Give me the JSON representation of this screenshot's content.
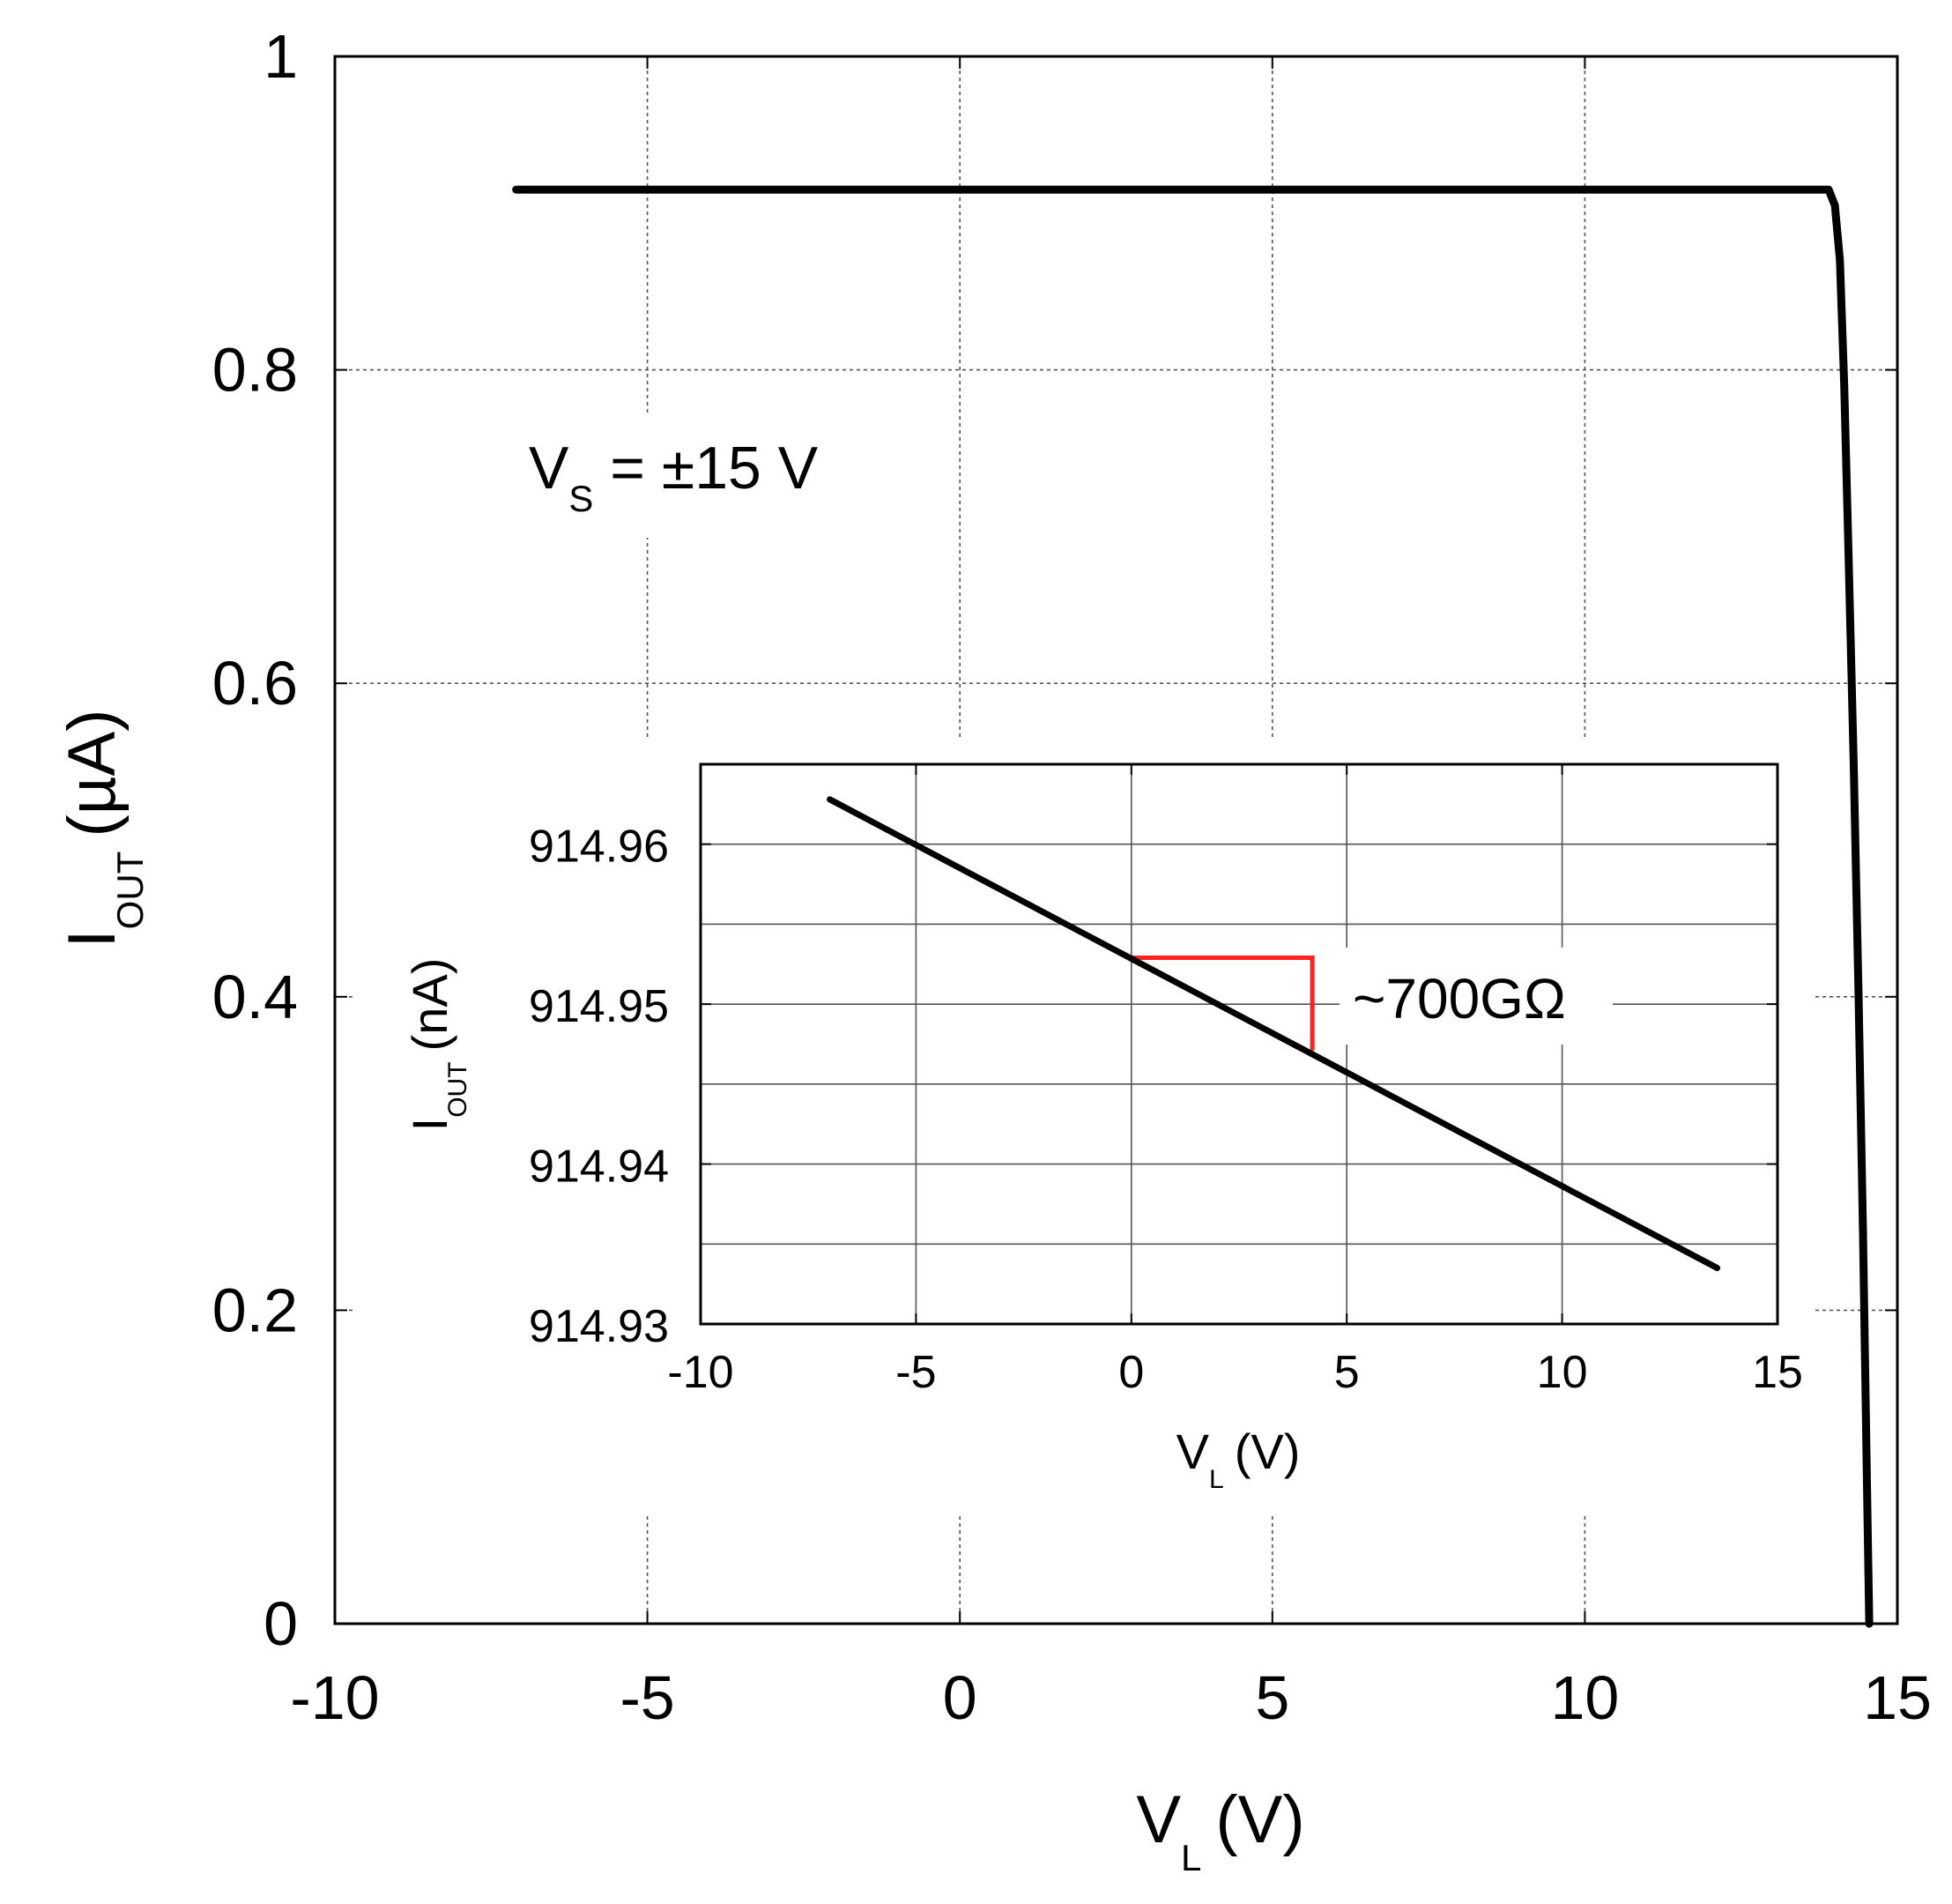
{
  "chart_data": [
    {
      "type": "line",
      "xlabel_main": "V",
      "xlabel_sub": "L",
      "xlabel_unit": "(V)",
      "ylabel_main": "I",
      "ylabel_sub": "OUT",
      "ylabel_unit": "(µA)",
      "xlim": [
        -10,
        15
      ],
      "ylim": [
        0,
        1
      ],
      "x_ticks": [
        "-10",
        "-5",
        "0",
        "5",
        "10",
        "15"
      ],
      "y_ticks": [
        "0",
        "0.2",
        "0.4",
        "0.6",
        "0.8",
        "1"
      ],
      "grid": true,
      "annotation": {
        "main": "V",
        "sub": "S",
        "rest": " = ±15 V"
      },
      "series": [
        {
          "color": "#000000",
          "x": [
            -7.1,
            -3,
            0,
            5,
            10,
            13.3,
            13.9,
            14.0,
            14.08,
            14.15,
            14.22,
            14.3,
            14.38,
            14.45,
            14.51,
            14.55
          ],
          "y": [
            0.915,
            0.915,
            0.915,
            0.915,
            0.915,
            0.915,
            0.915,
            0.905,
            0.87,
            0.79,
            0.68,
            0.55,
            0.4,
            0.25,
            0.1,
            0.0
          ]
        }
      ]
    },
    {
      "type": "line",
      "xlabel_main": "V",
      "xlabel_sub": "L",
      "xlabel_unit": "(V)",
      "ylabel_main": "I",
      "ylabel_sub": "OUT",
      "ylabel_unit": "(nA)",
      "xlim": [
        -10,
        15
      ],
      "ylim": [
        914.93,
        914.965
      ],
      "x_ticks": [
        "-10",
        "-5",
        "0",
        "5",
        "10",
        "15"
      ],
      "y_ticks": [
        "914.93",
        "914.94",
        "914.95",
        "914.96"
      ],
      "grid": true,
      "series": [
        {
          "color": "#000000",
          "x": [
            -7.0,
            13.6
          ],
          "y": [
            914.9628,
            914.9335
          ]
        }
      ],
      "slope_marker": {
        "color": "#ff2020",
        "x": [
          0,
          4.2
        ],
        "y": [
          914.9529,
          914.9471
        ],
        "label": "~700GΩ"
      }
    }
  ]
}
